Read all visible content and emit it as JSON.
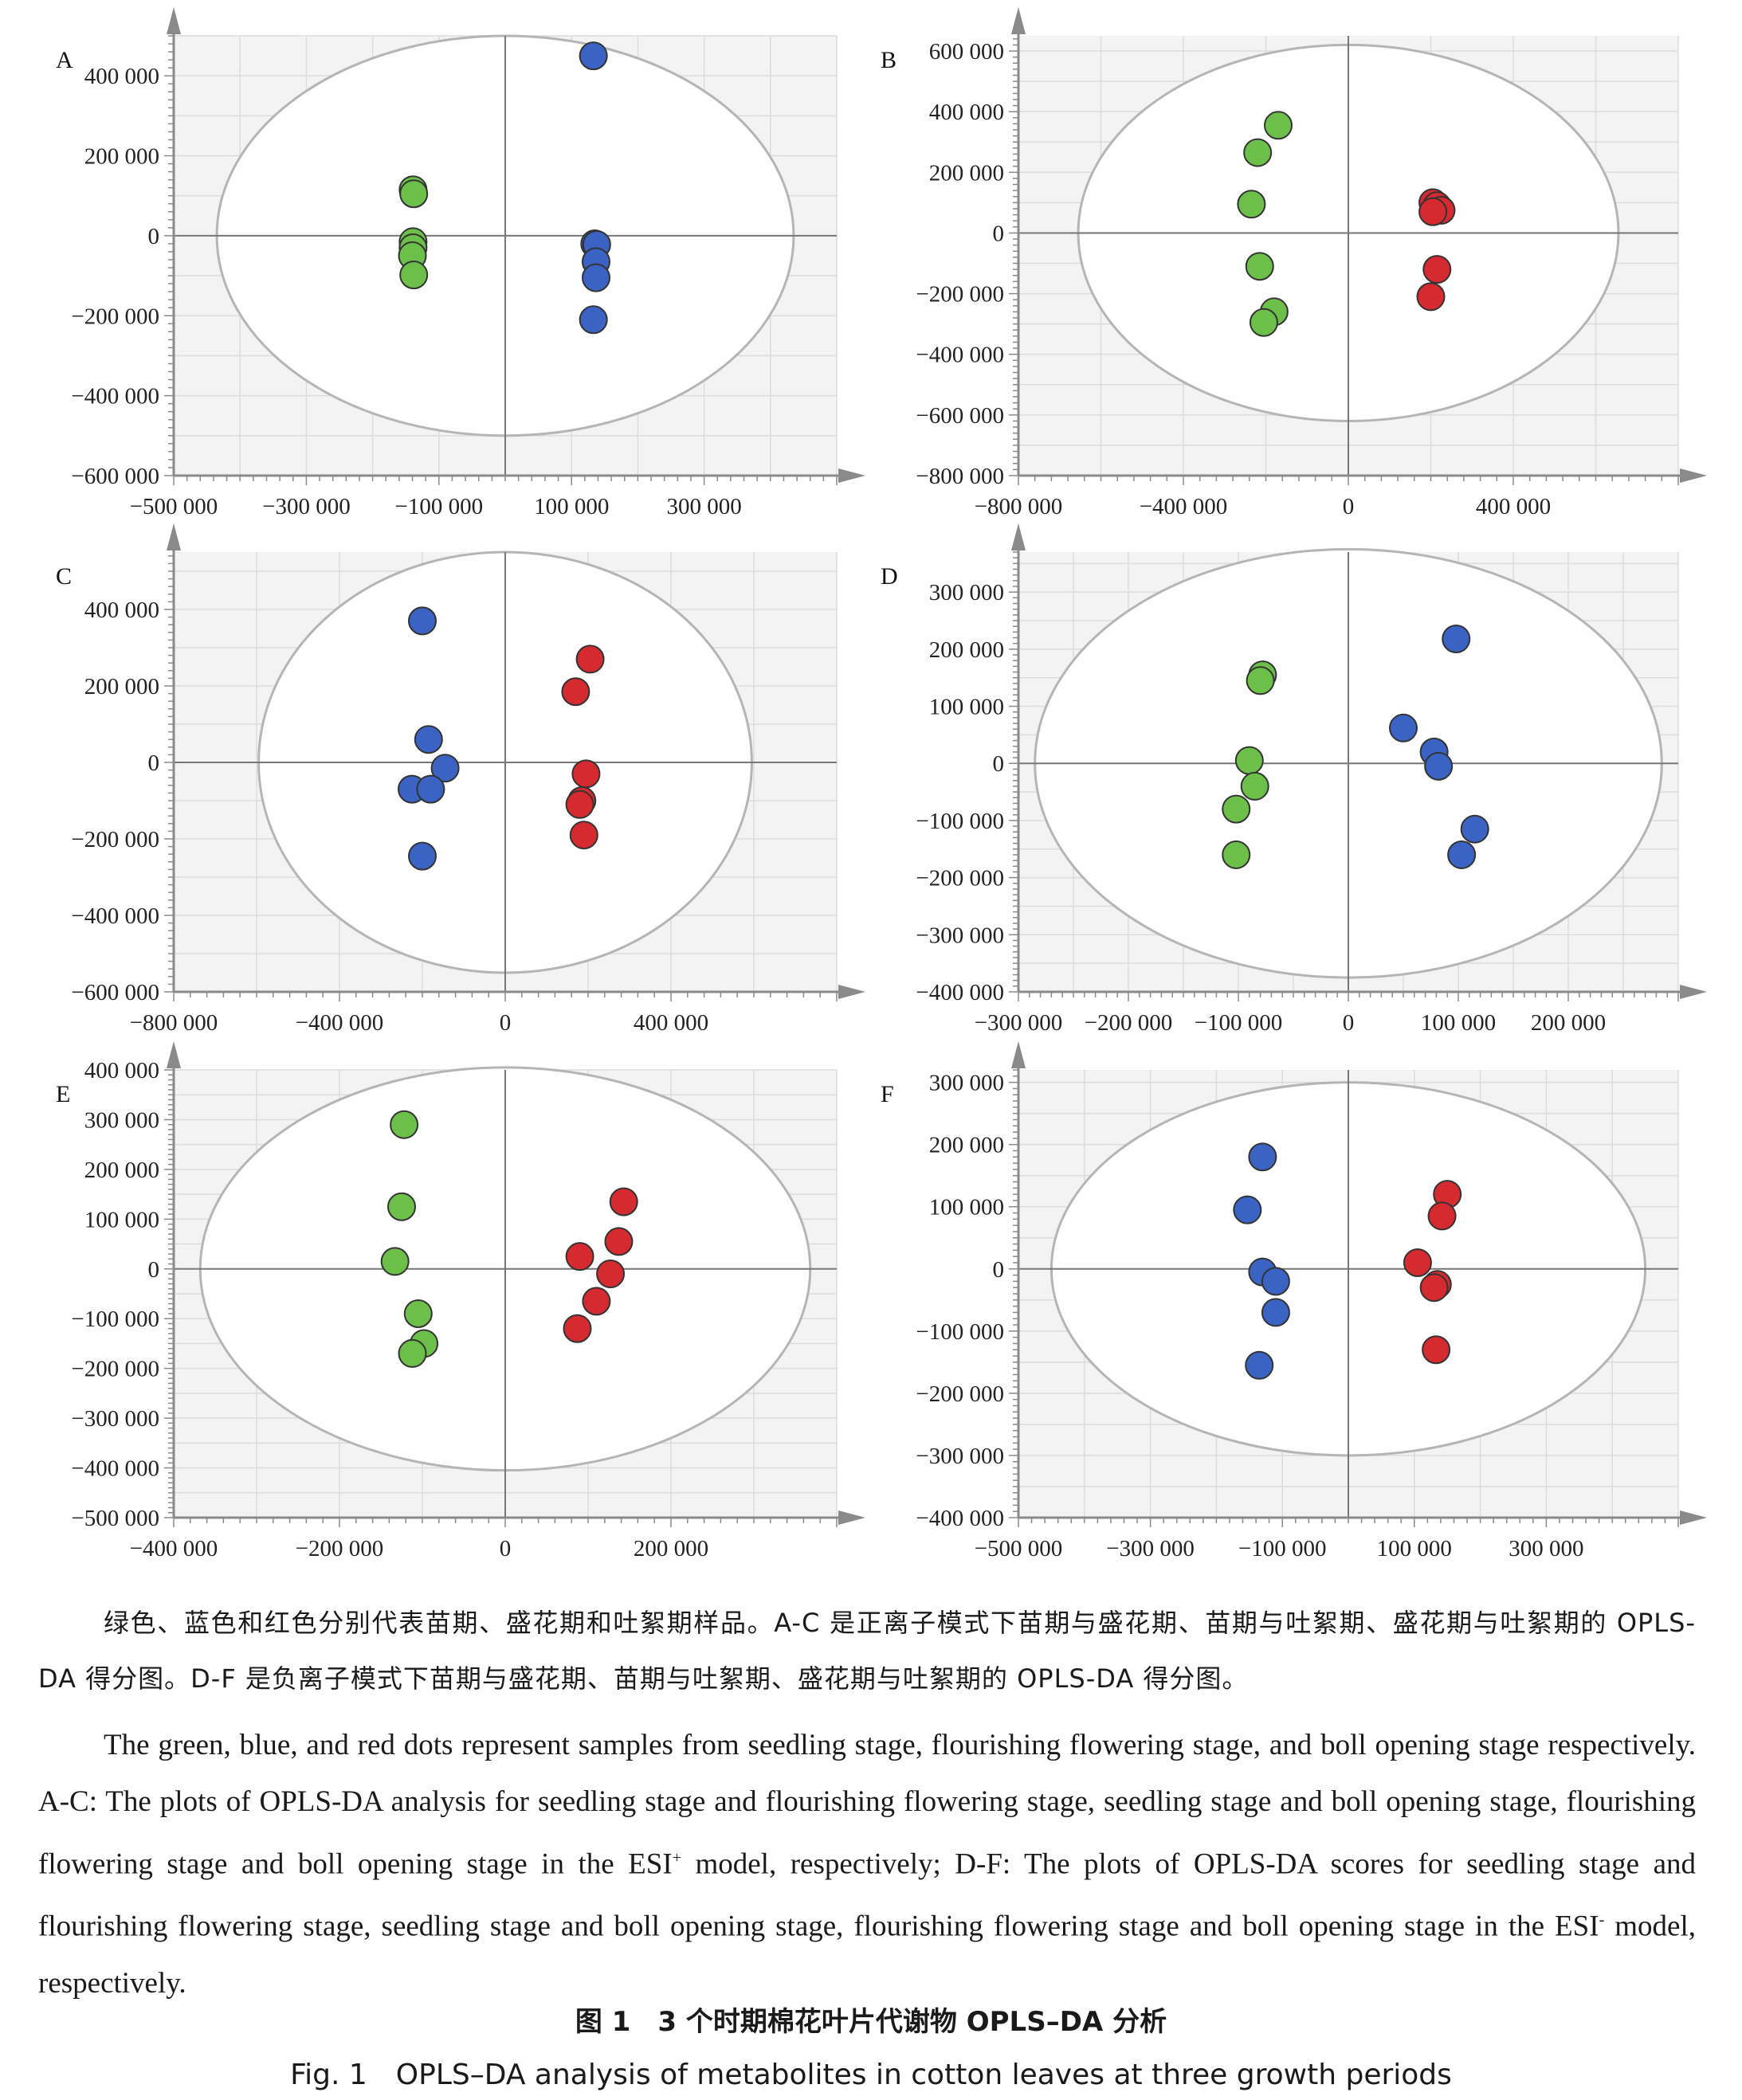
{
  "chart_data": [
    {
      "panel": "A",
      "type": "scatter",
      "xlim": [
        -500000,
        500000
      ],
      "ylim": [
        -600000,
        500000
      ],
      "xticks": [
        -500000,
        -300000,
        -100000,
        100000,
        300000
      ],
      "xtick_labels": [
        "−500 000",
        "−300 000",
        "−100 000",
        "100 000",
        "300 000"
      ],
      "yticks": [
        -600000,
        -400000,
        -200000,
        0,
        200000,
        400000
      ],
      "ytick_labels": [
        "−600 000",
        "−400 000",
        "−200 000",
        "0",
        "200 000",
        "400 000"
      ],
      "ellipse": {
        "rx": 435000,
        "ry": 500000
      },
      "series": [
        {
          "color": "#6cc04a",
          "points": [
            [
              -139000,
              115000
            ],
            [
              -138000,
              105000
            ],
            [
              -139000,
              -15000
            ],
            [
              -139000,
              -30000
            ],
            [
              -140000,
              -50000
            ],
            [
              -138000,
              -98000
            ]
          ]
        },
        {
          "color": "#3b63c4",
          "points": [
            [
              133000,
              450000
            ],
            [
              135000,
              -20000
            ],
            [
              138000,
              -22000
            ],
            [
              137000,
              -65000
            ],
            [
              137000,
              -105000
            ],
            [
              133000,
              -210000
            ]
          ]
        }
      ]
    },
    {
      "panel": "B",
      "type": "scatter",
      "xlim": [
        -800000,
        800000
      ],
      "ylim": [
        -800000,
        650000
      ],
      "xticks": [
        -800000,
        -400000,
        0,
        400000
      ],
      "xtick_labels": [
        "−800 000",
        "−400 000",
        "0",
        "400 000"
      ],
      "yticks": [
        -800000,
        -600000,
        -400000,
        -200000,
        0,
        200000,
        400000,
        600000
      ],
      "ytick_labels": [
        "−800 000",
        "−600 000",
        "−400 000",
        "−200 000",
        "0",
        "200 000",
        "400 000",
        "600 000"
      ],
      "ellipse": {
        "rx": 655000,
        "ry": 620000
      },
      "series": [
        {
          "color": "#6cc04a",
          "points": [
            [
              -170000,
              355000
            ],
            [
              -220000,
              265000
            ],
            [
              -235000,
              95000
            ],
            [
              -215000,
              -110000
            ],
            [
              -180000,
              -260000
            ],
            [
              -205000,
              -295000
            ]
          ]
        },
        {
          "color": "#d42a30",
          "points": [
            [
              205000,
              100000
            ],
            [
              215000,
              90000
            ],
            [
              225000,
              75000
            ],
            [
              205000,
              70000
            ],
            [
              215000,
              -120000
            ],
            [
              200000,
              -210000
            ]
          ]
        }
      ]
    },
    {
      "panel": "C",
      "type": "scatter",
      "xlim": [
        -800000,
        800000
      ],
      "ylim": [
        -600000,
        550000
      ],
      "xticks": [
        -800000,
        -400000,
        0,
        400000
      ],
      "xtick_labels": [
        "−800 000",
        "−400 000",
        "0",
        "400 000"
      ],
      "yticks": [
        -600000,
        -400000,
        -200000,
        0,
        200000,
        400000
      ],
      "ytick_labels": [
        "−600 000",
        "−400 000",
        "−200 000",
        "0",
        "200 000",
        "400 000"
      ],
      "ellipse": {
        "rx": 595000,
        "ry": 550000
      },
      "series": [
        {
          "color": "#3b63c4",
          "points": [
            [
              -200000,
              370000
            ],
            [
              -185000,
              60000
            ],
            [
              -145000,
              -15000
            ],
            [
              -225000,
              -70000
            ],
            [
              -180000,
              -70000
            ],
            [
              -200000,
              -245000
            ]
          ]
        },
        {
          "color": "#d42a30",
          "points": [
            [
              205000,
              270000
            ],
            [
              170000,
              185000
            ],
            [
              195000,
              -30000
            ],
            [
              185000,
              -100000
            ],
            [
              180000,
              -110000
            ],
            [
              190000,
              -190000
            ]
          ]
        }
      ]
    },
    {
      "panel": "D",
      "type": "scatter",
      "xlim": [
        -300000,
        300000
      ],
      "ylim": [
        -400000,
        370000
      ],
      "xticks": [
        -300000,
        -200000,
        -100000,
        0,
        100000,
        200000
      ],
      "xtick_labels": [
        "−300 000",
        "−200 000",
        "−100 000",
        "0",
        "100 000",
        "200 000"
      ],
      "yticks": [
        -400000,
        -300000,
        -200000,
        -100000,
        0,
        100000,
        200000,
        300000
      ],
      "ytick_labels": [
        "−400 000",
        "−300 000",
        "−200 000",
        "−100 000",
        "0",
        "100 000",
        "200 000",
        "300 000"
      ],
      "ellipse": {
        "rx": 285000,
        "ry": 375000
      },
      "series": [
        {
          "color": "#6cc04a",
          "points": [
            [
              -78000,
              155000
            ],
            [
              -80000,
              145000
            ],
            [
              -90000,
              5000
            ],
            [
              -85000,
              -40000
            ],
            [
              -102000,
              -80000
            ],
            [
              -102000,
              -160000
            ]
          ]
        },
        {
          "color": "#3b63c4",
          "points": [
            [
              98000,
              218000
            ],
            [
              50000,
              62000
            ],
            [
              78000,
              20000
            ],
            [
              82000,
              -5000
            ],
            [
              115000,
              -115000
            ],
            [
              103000,
              -160000
            ]
          ]
        }
      ]
    },
    {
      "panel": "E",
      "type": "scatter",
      "xlim": [
        -400000,
        400000
      ],
      "ylim": [
        -500000,
        400000
      ],
      "xticks": [
        -400000,
        -200000,
        0,
        200000
      ],
      "xtick_labels": [
        "−400 000",
        "−200 000",
        "0",
        "200 000"
      ],
      "yticks": [
        -500000,
        -400000,
        -300000,
        -200000,
        -100000,
        0,
        100000,
        200000,
        300000,
        400000
      ],
      "ytick_labels": [
        "−500 000",
        "−400 000",
        "−300 000",
        "−200 000",
        "−100 000",
        "0",
        "100 000",
        "200 000",
        "300 000",
        "400 000"
      ],
      "ellipse": {
        "rx": 368000,
        "ry": 405000
      },
      "series": [
        {
          "color": "#6cc04a",
          "points": [
            [
              -122000,
              290000
            ],
            [
              -125000,
              125000
            ],
            [
              -133000,
              15000
            ],
            [
              -105000,
              -90000
            ],
            [
              -98000,
              -150000
            ],
            [
              -112000,
              -170000
            ]
          ]
        },
        {
          "color": "#d42a30",
          "points": [
            [
              143000,
              135000
            ],
            [
              137000,
              55000
            ],
            [
              90000,
              25000
            ],
            [
              127000,
              -10000
            ],
            [
              110000,
              -65000
            ],
            [
              87000,
              -120000
            ]
          ]
        }
      ]
    },
    {
      "panel": "F",
      "type": "scatter",
      "xlim": [
        -500000,
        500000
      ],
      "ylim": [
        -400000,
        320000
      ],
      "xticks": [
        -500000,
        -300000,
        -100000,
        100000,
        300000
      ],
      "xtick_labels": [
        "−500 000",
        "−300 000",
        "−100 000",
        "100 000",
        "300 000"
      ],
      "yticks": [
        -400000,
        -300000,
        -200000,
        -100000,
        0,
        100000,
        200000,
        300000
      ],
      "ytick_labels": [
        "−400 000",
        "−300 000",
        "−200 000",
        "−100 000",
        "0",
        "100 000",
        "200 000",
        "300 000"
      ],
      "ellipse": {
        "rx": 450000,
        "ry": 300000
      },
      "series": [
        {
          "color": "#3b63c4",
          "points": [
            [
              -130000,
              180000
            ],
            [
              -153000,
              95000
            ],
            [
              -130000,
              -5000
            ],
            [
              -110000,
              -20000
            ],
            [
              -110000,
              -70000
            ],
            [
              -135000,
              -155000
            ]
          ]
        },
        {
          "color": "#d42a30",
          "points": [
            [
              150000,
              120000
            ],
            [
              142000,
              85000
            ],
            [
              105000,
              10000
            ],
            [
              135000,
              -25000
            ],
            [
              130000,
              -30000
            ],
            [
              133000,
              -130000
            ]
          ]
        }
      ]
    }
  ],
  "caption": {
    "cn": "绿色、蓝色和红色分别代表苗期、盛花期和吐絮期样品。A-C 是正离子模式下苗期与盛花期、苗期与吐絮期、盛花期与吐絮期的 OPLS-DA 得分图。D-F 是负离子模式下苗期与盛花期、苗期与吐絮期、盛花期与吐絮期的 OPLS-DA 得分图。",
    "en_part1": "The green, blue, and red dots represent samples from seedling stage, flourishing flowering stage, and boll opening stage respectively. A-C: The plots of OPLS-DA analysis for seedling stage and flourishing flowering stage, seedling stage and boll opening stage, flourishing flowering stage and boll opening stage in the ESI",
    "sup_plus": "+",
    "en_part2": " model, respectively; D-F: The plots of OPLS-DA scores for seedling stage and flourishing flowering stage, seedling stage and boll opening stage, flourishing flowering stage and boll opening stage in the ESI",
    "sup_minus": "-",
    "en_part3": " model, respectively."
  },
  "figure_title": {
    "cn": "图 1　3 个时期棉花叶片代谢物 OPLS–DA 分析",
    "en": "Fig. 1　OPLS–DA analysis of metabolites in cotton leaves at three growth periods"
  }
}
